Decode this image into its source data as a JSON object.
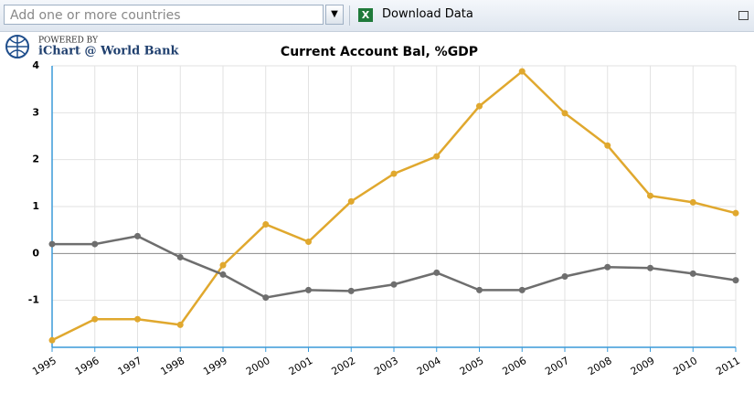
{
  "toolbar": {
    "search_placeholder": "Add one or more countries",
    "download": "Download Data"
  },
  "logo": {
    "powered": "POWERED BY",
    "brand": "iChart @ World Bank"
  },
  "chart_data": {
    "type": "line",
    "title": "Current Account Bal, %GDP",
    "categories": [
      "1995",
      "1996",
      "1997",
      "1998",
      "1999",
      "2000",
      "2001",
      "2002",
      "2003",
      "2004",
      "2005",
      "2006",
      "2007",
      "2008",
      "2009",
      "2010",
      "2011"
    ],
    "series": [
      {
        "color": "#e0a82e",
        "values": [
          -1.85,
          -1.4,
          -1.4,
          -1.52,
          -0.25,
          0.62,
          0.25,
          1.11,
          1.7,
          2.07,
          3.14,
          3.88,
          2.99,
          2.3,
          1.23,
          1.09,
          0.86
        ]
      },
      {
        "color": "#6e6e6e",
        "values": [
          0.2,
          0.2,
          0.37,
          -0.08,
          -0.45,
          -0.94,
          -0.78,
          -0.8,
          -0.66,
          -0.41,
          -0.78,
          -0.78,
          -0.49,
          -0.29,
          -0.31,
          -0.43,
          -0.57
        ]
      }
    ],
    "ylim": [
      -2,
      4
    ],
    "yticks": [
      -1,
      0,
      1,
      2,
      3,
      4
    ],
    "grid": true
  }
}
